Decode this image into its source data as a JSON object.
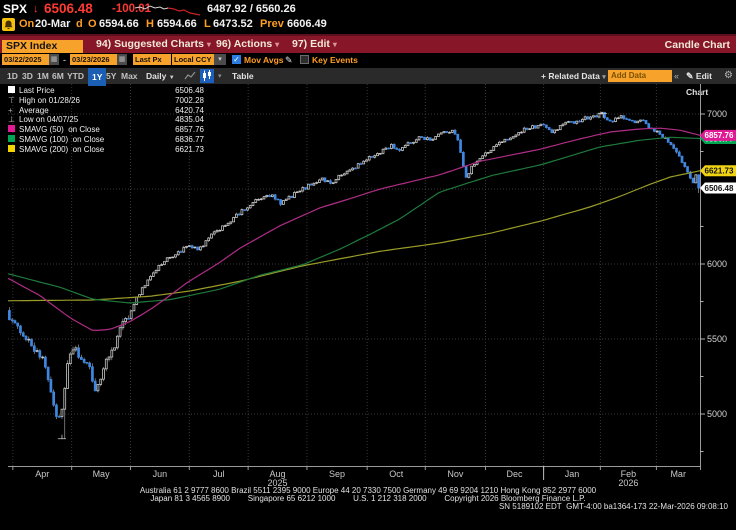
{
  "top_bar": {
    "ticker": "SPX",
    "direction_arrow": "↓",
    "last_price": "6506.48",
    "net_change": "-100.01",
    "day_range": "6487.92 / 6560.26",
    "session": {
      "on_label": "On",
      "date": "20-Mar",
      "d_label": "d",
      "o_label": "O",
      "open": "6594.66",
      "h_label": "H",
      "high": "6594.66",
      "l_label": "L",
      "low": "6473.52",
      "prev_label": "Prev",
      "prev": "6606.49"
    }
  },
  "menu_bar": {
    "security": "SPX Index",
    "items": [
      {
        "label": "94) Suggested Charts"
      },
      {
        "label": "96) Actions"
      },
      {
        "label": "97) Edit"
      }
    ],
    "right_label": "Candle Chart"
  },
  "toolbar": {
    "date_from": "03/22/2025",
    "date_sep": "-",
    "date_to": "03/23/2026",
    "px_type": "Last Px",
    "currency": "Local CCY",
    "mov_avgs_label": "Mov Avgs",
    "key_events_label": "Key Events"
  },
  "range_bar": {
    "ranges": [
      "1D",
      "3D",
      "1M",
      "6M",
      "YTD",
      "1Y",
      "5Y",
      "Max"
    ],
    "selected_range": "1Y",
    "period": "Daily",
    "table_label": "Table",
    "related_label": "+ Related Data",
    "add_data_placeholder": "Add Data",
    "collapse_glyph": "«",
    "edit_chart_label": "Edit Chart"
  },
  "legend": [
    {
      "marker": "square",
      "color": "#ffffff",
      "label": "Last Price",
      "value": "6506.48"
    },
    {
      "marker": "high",
      "color": "#b0b0b0",
      "label": "High on 01/28/26",
      "value": "7002.28"
    },
    {
      "marker": "avg",
      "color": "#b0b0b0",
      "label": "Average",
      "value": "6420.74"
    },
    {
      "marker": "low",
      "color": "#b0b0b0",
      "label": "Low on 04/07/25",
      "value": "4835.04"
    },
    {
      "marker": "square",
      "color": "#e01a95",
      "label": "SMAVG (50)  on Close",
      "value": "6857.76"
    },
    {
      "marker": "square",
      "color": "#00a651",
      "label": "SMAVG (100)  on Close",
      "value": "6836.77"
    },
    {
      "marker": "square",
      "color": "#f5d500",
      "label": "SMAVG (200)  on Close",
      "value": "6621.73"
    }
  ],
  "chart_data": {
    "type": "candlestick",
    "title": "SPX Index 1Y Daily Candle Chart",
    "last_price": 6506.48,
    "high_point": {
      "date": "01/28/26",
      "value": 7002.28
    },
    "low_point": {
      "date": "04/07/25",
      "value": 4835.04
    },
    "average": 6420.74,
    "last_candle": {
      "open": 6594.66,
      "high": 6594.66,
      "low": 6473.52,
      "close": 6506.48
    },
    "y_axis": {
      "ticks": [
        7000,
        6500,
        6000,
        5500,
        5000
      ],
      "minor_ticks": [
        6750,
        6250,
        5750,
        5250,
        4750
      ],
      "top_value": 7200,
      "bottom_value": 4653
    },
    "x_axis": {
      "months": [
        {
          "label": "Apr",
          "t": 0.0495
        },
        {
          "label": "May",
          "t": 0.1345
        },
        {
          "label": "Jun",
          "t": 0.2195
        },
        {
          "label": "Jul",
          "t": 0.3045
        },
        {
          "label": "Aug",
          "t": 0.3895,
          "year": "2025"
        },
        {
          "label": "Sep",
          "t": 0.4755
        },
        {
          "label": "Oct",
          "t": 0.561
        },
        {
          "label": "Nov",
          "t": 0.6465
        },
        {
          "label": "Dec",
          "t": 0.732
        },
        {
          "label": "Jan",
          "t": 0.815
        },
        {
          "label": "Feb",
          "t": 0.8965,
          "year": "2026"
        },
        {
          "label": "Mar",
          "t": 0.9685
        }
      ],
      "boundaries_t": [
        0.007,
        0.092,
        0.177,
        0.262,
        0.347,
        0.432,
        0.519,
        0.603,
        0.69,
        0.774,
        0.856,
        0.937
      ],
      "year_line_t": 0.774
    },
    "candle_count": 250,
    "up_color": "#c8c8c8",
    "down_color": "#3e86e0",
    "close_path": [
      [
        0.0,
        5660
      ],
      [
        0.017,
        5570
      ],
      [
        0.032,
        5480
      ],
      [
        0.046,
        5410
      ],
      [
        0.058,
        5290
      ],
      [
        0.068,
        5060
      ],
      [
        0.078,
        4930
      ],
      [
        0.087,
        5290
      ],
      [
        0.097,
        5460
      ],
      [
        0.108,
        5360
      ],
      [
        0.119,
        5300
      ],
      [
        0.129,
        5160
      ],
      [
        0.14,
        5290
      ],
      [
        0.152,
        5430
      ],
      [
        0.165,
        5560
      ],
      [
        0.178,
        5680
      ],
      [
        0.191,
        5800
      ],
      [
        0.205,
        5900
      ],
      [
        0.22,
        5985
      ],
      [
        0.234,
        6040
      ],
      [
        0.249,
        6080
      ],
      [
        0.263,
        6120
      ],
      [
        0.277,
        6090
      ],
      [
        0.292,
        6170
      ],
      [
        0.306,
        6230
      ],
      [
        0.321,
        6280
      ],
      [
        0.335,
        6330
      ],
      [
        0.35,
        6390
      ],
      [
        0.364,
        6430
      ],
      [
        0.382,
        6460
      ],
      [
        0.396,
        6400
      ],
      [
        0.41,
        6450
      ],
      [
        0.425,
        6490
      ],
      [
        0.439,
        6530
      ],
      [
        0.454,
        6570
      ],
      [
        0.468,
        6540
      ],
      [
        0.483,
        6590
      ],
      [
        0.497,
        6630
      ],
      [
        0.512,
        6670
      ],
      [
        0.526,
        6710
      ],
      [
        0.541,
        6750
      ],
      [
        0.555,
        6790
      ],
      [
        0.569,
        6760
      ],
      [
        0.584,
        6810
      ],
      [
        0.598,
        6850
      ],
      [
        0.613,
        6830
      ],
      [
        0.627,
        6870
      ],
      [
        0.642,
        6890
      ],
      [
        0.653,
        6830
      ],
      [
        0.663,
        6580
      ],
      [
        0.673,
        6650
      ],
      [
        0.686,
        6710
      ],
      [
        0.701,
        6770
      ],
      [
        0.715,
        6810
      ],
      [
        0.73,
        6850
      ],
      [
        0.744,
        6890
      ],
      [
        0.759,
        6910
      ],
      [
        0.773,
        6930
      ],
      [
        0.788,
        6880
      ],
      [
        0.802,
        6925
      ],
      [
        0.816,
        6945
      ],
      [
        0.831,
        6965
      ],
      [
        0.845,
        6985
      ],
      [
        0.86,
        7000
      ],
      [
        0.874,
        6950
      ],
      [
        0.889,
        6985
      ],
      [
        0.903,
        6940
      ],
      [
        0.918,
        6965
      ],
      [
        0.932,
        6895
      ],
      [
        0.947,
        6855
      ],
      [
        0.957,
        6810
      ],
      [
        0.965,
        6755
      ],
      [
        0.974,
        6700
      ],
      [
        0.981,
        6645
      ],
      [
        0.987,
        6575
      ],
      [
        0.993,
        6535
      ],
      [
        1.0,
        6506.48
      ]
    ],
    "smavg": [
      {
        "name": "SMAVG (50) on Close",
        "period": 50,
        "line_color": "#b02d86",
        "badge_color": "#e01a95",
        "badge_text_color": "#ffffff",
        "last_value": 6857.76,
        "path": [
          [
            0.0,
            5905
          ],
          [
            0.046,
            5790
          ],
          [
            0.09,
            5640
          ],
          [
            0.123,
            5555
          ],
          [
            0.148,
            5565
          ],
          [
            0.176,
            5615
          ],
          [
            0.205,
            5695
          ],
          [
            0.234,
            5790
          ],
          [
            0.26,
            5880
          ],
          [
            0.306,
            6010
          ],
          [
            0.335,
            6105
          ],
          [
            0.393,
            6255
          ],
          [
            0.451,
            6375
          ],
          [
            0.48,
            6415
          ],
          [
            0.538,
            6500
          ],
          [
            0.624,
            6595
          ],
          [
            0.682,
            6685
          ],
          [
            0.769,
            6765
          ],
          [
            0.827,
            6835
          ],
          [
            0.87,
            6880
          ],
          [
            0.913,
            6900
          ],
          [
            0.942,
            6906
          ],
          [
            0.971,
            6892
          ],
          [
            1.0,
            6857.76
          ]
        ]
      },
      {
        "name": "SMAVG (100) on Close",
        "period": 100,
        "line_color": "#1e7a3c",
        "badge_color": "#00a651",
        "badge_text_color": "#ffffff",
        "last_value": 6836.77,
        "path": [
          [
            0.0,
            5935
          ],
          [
            0.075,
            5845
          ],
          [
            0.123,
            5765
          ],
          [
            0.176,
            5740
          ],
          [
            0.234,
            5762
          ],
          [
            0.306,
            5832
          ],
          [
            0.364,
            5925
          ],
          [
            0.426,
            5995
          ],
          [
            0.48,
            6100
          ],
          [
            0.524,
            6200
          ],
          [
            0.566,
            6300
          ],
          [
            0.624,
            6480
          ],
          [
            0.699,
            6590
          ],
          [
            0.769,
            6660
          ],
          [
            0.798,
            6700
          ],
          [
            0.855,
            6780
          ],
          [
            0.913,
            6825
          ],
          [
            0.957,
            6845
          ],
          [
            1.0,
            6836.77
          ]
        ]
      },
      {
        "name": "SMAVG (200) on Close",
        "period": 200,
        "line_color": "#9a9c28",
        "badge_color": "#f0d411",
        "badge_text_color": "#111111",
        "last_value": 6621.73,
        "path": [
          [
            0.0,
            5755
          ],
          [
            0.123,
            5760
          ],
          [
            0.205,
            5785
          ],
          [
            0.263,
            5820
          ],
          [
            0.335,
            5885
          ],
          [
            0.426,
            5988
          ],
          [
            0.48,
            6035
          ],
          [
            0.538,
            6085
          ],
          [
            0.624,
            6140
          ],
          [
            0.697,
            6205
          ],
          [
            0.769,
            6285
          ],
          [
            0.841,
            6380
          ],
          [
            0.884,
            6450
          ],
          [
            0.927,
            6530
          ],
          [
            0.957,
            6580
          ],
          [
            1.0,
            6621.73
          ]
        ]
      }
    ],
    "badges": [
      {
        "value": 6836.77,
        "label": "6836.77",
        "bg": "#00a651",
        "fg": "#ffffff"
      },
      {
        "value": 6857.76,
        "label": "6857.76",
        "bg": "#e01a95",
        "fg": "#ffffff"
      },
      {
        "value": 6621.73,
        "label": "6621.73",
        "bg": "#f0d411",
        "fg": "#111111"
      },
      {
        "value": 6506.48,
        "label": "6506.48",
        "bg": "#ffffff",
        "fg": "#111111"
      }
    ]
  },
  "footer": {
    "line1": "Australia 61 2 9777 8600 Brazil 5511 2395 9000 Europe 44 20 7330 7500 Germany 49 69 9204 1210 Hong Kong 852 2977 6000",
    "line2": "Japan 81 3 4565 8900        Singapore 65 6212 1000        U.S. 1 212 318 2000        Copyright 2026 Bloomberg Finance L.P.",
    "line3": "SN 5189102 EDT  GMT-4:00 ba1364-173 22-Mar-2026 09:08:10"
  }
}
